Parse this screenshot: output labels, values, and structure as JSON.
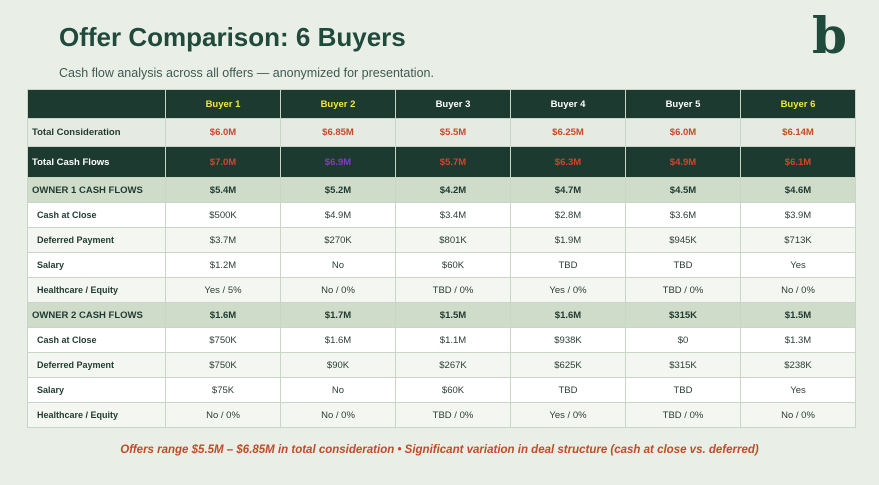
{
  "header": {
    "title": "Offer Comparison: 6 Buyers",
    "subtitle": "Cash flow analysis across all offers — anonymized for presentation.",
    "logo": "b"
  },
  "table": {
    "columns": [
      "Buyer 1",
      "Buyer 2",
      "Buyer 3",
      "Buyer 4",
      "Buyer 5",
      "Buyer 6"
    ],
    "total_consideration": {
      "label": "Total Consideration",
      "values": [
        "$6.0M",
        "$6.85M",
        "$5.5M",
        "$6.25M",
        "$6.0M",
        "$6.14M"
      ]
    },
    "total_cash_flows": {
      "label": "Total Cash Flows",
      "values": [
        "$7.0M",
        "$6.9M",
        "$5.7M",
        "$6.3M",
        "$4.9M",
        "$6.1M"
      ]
    },
    "owner1": {
      "label": "OWNER 1 CASH FLOWS",
      "values": [
        "$5.4M",
        "$5.2M",
        "$4.2M",
        "$4.7M",
        "$4.5M",
        "$4.6M"
      ],
      "rows": [
        {
          "label": "Cash at Close",
          "values": [
            "$500K",
            "$4.9M",
            "$3.4M",
            "$2.8M",
            "$3.6M",
            "$3.9M"
          ]
        },
        {
          "label": "Deferred Payment",
          "values": [
            "$3.7M",
            "$270K",
            "$801K",
            "$1.9M",
            "$945K",
            "$713K"
          ]
        },
        {
          "label": "Salary",
          "values": [
            "$1.2M",
            "No",
            "$60K",
            "TBD",
            "TBD",
            "Yes"
          ]
        },
        {
          "label": "Healthcare / Equity",
          "values": [
            "Yes / 5%",
            "No / 0%",
            "TBD / 0%",
            "Yes / 0%",
            "TBD / 0%",
            "No / 0%"
          ]
        }
      ]
    },
    "owner2": {
      "label": "OWNER 2 CASH FLOWS",
      "values": [
        "$1.6M",
        "$1.7M",
        "$1.5M",
        "$1.6M",
        "$315K",
        "$1.5M"
      ],
      "rows": [
        {
          "label": "Cash at Close",
          "values": [
            "$750K",
            "$1.6M",
            "$1.1M",
            "$938K",
            "$0",
            "$1.3M"
          ]
        },
        {
          "label": "Deferred Payment",
          "values": [
            "$750K",
            "$90K",
            "$267K",
            "$625K",
            "$315K",
            "$238K"
          ]
        },
        {
          "label": "Salary",
          "values": [
            "$75K",
            "No",
            "$60K",
            "TBD",
            "TBD",
            "Yes"
          ]
        },
        {
          "label": "Healthcare / Equity",
          "values": [
            "No / 0%",
            "No / 0%",
            "TBD / 0%",
            "Yes / 0%",
            "TBD / 0%",
            "No / 0%"
          ]
        }
      ]
    }
  },
  "footer": "Offers range $5.5M – $6.85M in total consideration  •  Significant variation in deal structure (cash at close vs. deferred)"
}
